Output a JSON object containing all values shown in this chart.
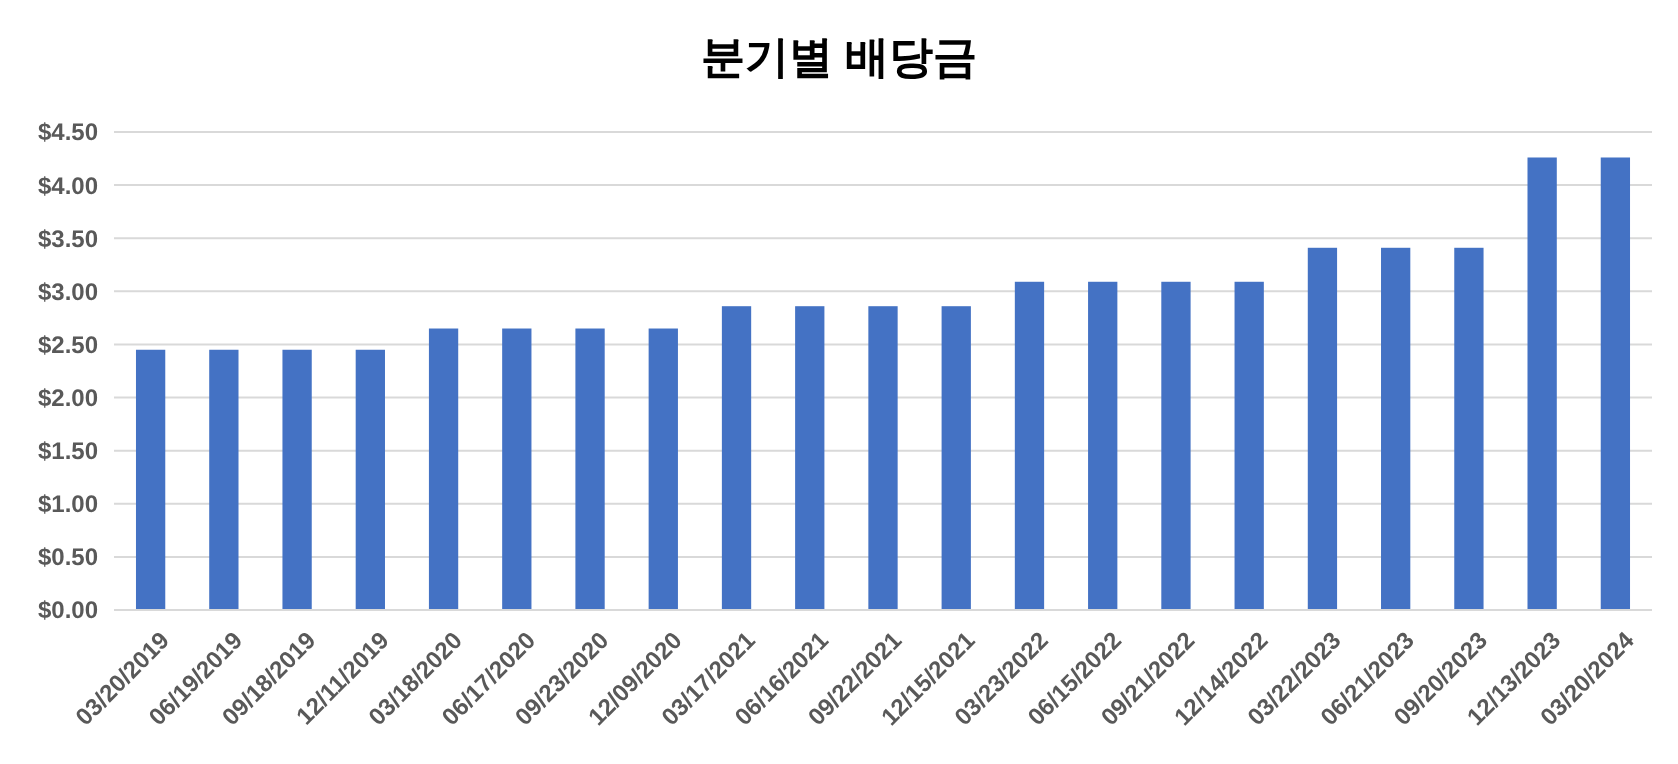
{
  "chart_data": {
    "type": "bar",
    "title": "분기별 배당금",
    "categories": [
      "03/20/2019",
      "06/19/2019",
      "09/18/2019",
      "12/11/2019",
      "03/18/2020",
      "06/17/2020",
      "09/23/2020",
      "12/09/2020",
      "03/17/2021",
      "06/16/2021",
      "09/22/2021",
      "12/15/2021",
      "03/23/2022",
      "06/15/2022",
      "09/21/2022",
      "12/14/2022",
      "03/22/2023",
      "06/21/2023",
      "09/20/2023",
      "12/13/2023",
      "03/20/2024"
    ],
    "values": [
      2.45,
      2.45,
      2.45,
      2.45,
      2.65,
      2.65,
      2.65,
      2.65,
      2.86,
      2.86,
      2.86,
      2.86,
      3.09,
      3.09,
      3.09,
      3.09,
      3.41,
      3.41,
      3.41,
      4.26,
      4.26
    ],
    "color": "#4472c4",
    "ylim": [
      0,
      4.5
    ],
    "yticks": [
      {
        "value": 0,
        "label": "$0.00"
      },
      {
        "value": 0.5,
        "label": "$0.50"
      },
      {
        "value": 1,
        "label": "$1.00"
      },
      {
        "value": 1.5,
        "label": "$1.50"
      },
      {
        "value": 2,
        "label": "$2.00"
      },
      {
        "value": 2.5,
        "label": "$2.50"
      },
      {
        "value": 3,
        "label": "$3.00"
      },
      {
        "value": 3.5,
        "label": "$3.50"
      },
      {
        "value": 4,
        "label": "$4.00"
      },
      {
        "value": 4.5,
        "label": "$4.50"
      }
    ],
    "grid": "y"
  }
}
